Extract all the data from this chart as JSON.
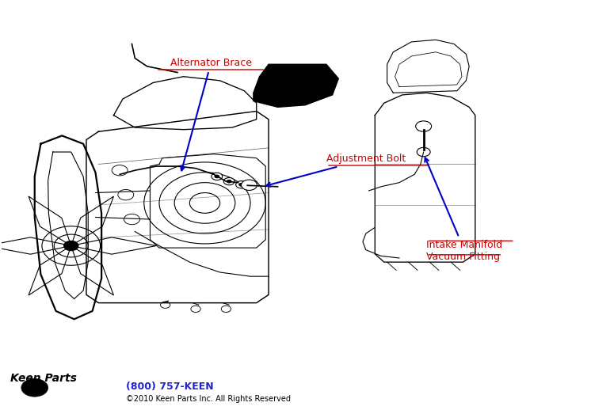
{
  "background_color": "#ffffff",
  "label_alternator_brace": "Alternator Brace",
  "label_adjustment_bolt": "Adjustment Bolt",
  "label_intake_manifold_line1": "Intake Manifold",
  "label_intake_manifold_line2": "Vacuum Fitting",
  "label_phone": "(800) 757-KEEN",
  "label_copyright": "©2010 Keen Parts Inc. All Rights Reserved",
  "label_color_red": "#cc0000",
  "arrow_color": "#0000cc",
  "phone_color": "#2222cc",
  "line_color": "#000000",
  "fig_width": 7.7,
  "fig_height": 5.18,
  "dpi": 100
}
